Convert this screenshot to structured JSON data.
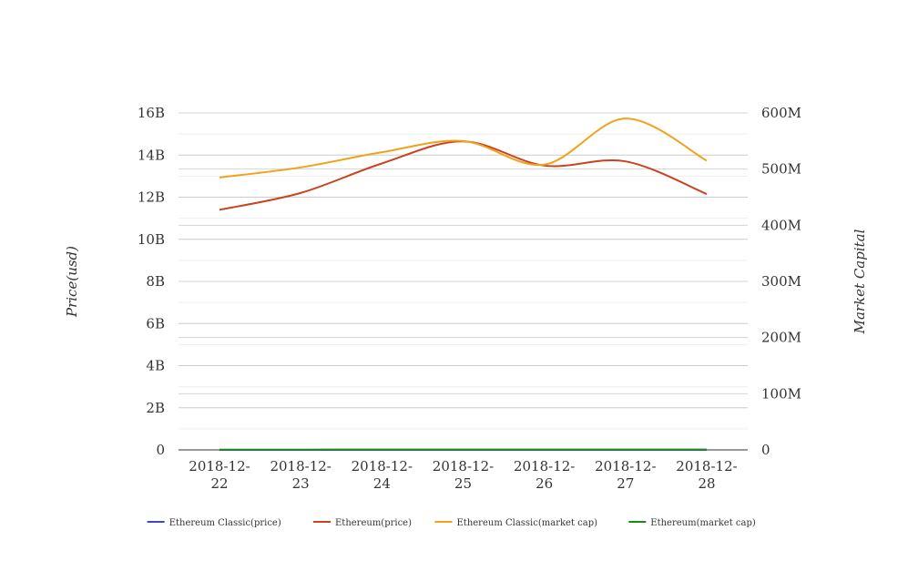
{
  "chart_data": {
    "type": "line",
    "title": "",
    "categories": [
      "2018-12-22",
      "2018-12-23",
      "2018-12-24",
      "2018-12-25",
      "2018-12-26",
      "2018-12-27",
      "2018-12-28"
    ],
    "category_lines": [
      [
        "2018-12-",
        "22"
      ],
      [
        "2018-12-",
        "23"
      ],
      [
        "2018-12-",
        "24"
      ],
      [
        "2018-12-",
        "25"
      ],
      [
        "2018-12-",
        "26"
      ],
      [
        "2018-12-",
        "27"
      ],
      [
        "2018-12-",
        "28"
      ]
    ],
    "y_left": {
      "label": "Price(usd)",
      "ylim": [
        0,
        16000000000
      ],
      "ticks": [
        0,
        2000000000,
        4000000000,
        6000000000,
        8000000000,
        10000000000,
        12000000000,
        14000000000,
        16000000000
      ],
      "tick_labels": [
        "0",
        "2B",
        "4B",
        "6B",
        "8B",
        "10B",
        "12B",
        "14B",
        "16B"
      ]
    },
    "y_right": {
      "label": "Market Capital",
      "ylim": [
        0,
        600000000
      ],
      "ticks": [
        0,
        100000000,
        200000000,
        300000000,
        400000000,
        500000000,
        600000000
      ],
      "tick_labels": [
        "0",
        "100M",
        "200M",
        "300M",
        "400M",
        "500M",
        "600M"
      ]
    },
    "series": [
      {
        "name": "Ethereum Classic(price)",
        "color": "#3b4cc0",
        "axis": "left",
        "values": [
          4.3,
          4.6,
          5.0,
          5.2,
          5.0,
          4.9,
          4.7
        ]
      },
      {
        "name": "Ethereum(price)",
        "color": "#c9431f",
        "axis": "left",
        "values": [
          11400000000,
          12200000000,
          13600000000,
          14650000000,
          13500000000,
          13700000000,
          12150000000
        ]
      },
      {
        "name": "Ethereum Classic(market cap)",
        "color": "#f0a21a",
        "axis": "right",
        "values": [
          485000000,
          503000000,
          530000000,
          550000000,
          508000000,
          590000000,
          515000000
        ]
      },
      {
        "name": "Ethereum(market cap)",
        "color": "#1a8a1a",
        "axis": "right",
        "values": [
          480000,
          500000,
          540000,
          560000,
          545000,
          540000,
          520000
        ]
      }
    ],
    "grid": true,
    "legend_position": "bottom-center"
  }
}
